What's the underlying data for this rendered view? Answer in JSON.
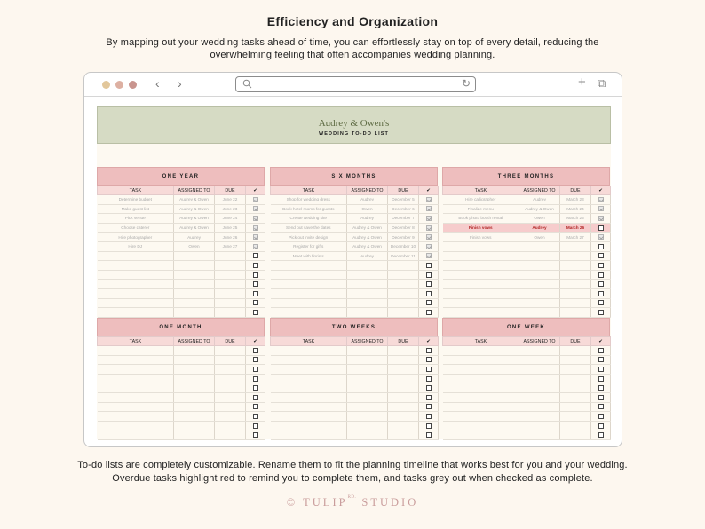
{
  "page": {
    "heading": "Efficiency and Organization",
    "intro": "By mapping out your wedding tasks ahead of time, you can effortlessly stay on top of every detail, reducing the overwhelming feeling that often accompanies wedding planning.",
    "outro_line1": "To-do lists are completely customizable. Rename them to fit the planning timeline that works best for you and your wedding.",
    "outro_line2": "Overdue tasks highlight red to remind you to complete them, and tasks grey out when checked as complete.",
    "brand_left": "© TULIP",
    "brand_sup": "RD.",
    "brand_right": "STUDIO"
  },
  "browser": {
    "dots": [
      "#e2c79b",
      "#ddb0a2",
      "#c9958f"
    ],
    "icons": {
      "back": "chevron-left-icon",
      "forward": "chevron-right-icon",
      "search": "search-icon",
      "reload": "reload-icon",
      "new_tab": "plus-icon",
      "tabs": "tabs-icon"
    },
    "back_glyph": "‹",
    "forward_glyph": "›",
    "reload_glyph": "↻",
    "plus_glyph": "+",
    "tabs_glyph": "⧉"
  },
  "banner": {
    "title": "Audrey & Owen's",
    "subtitle": "WEDDING TO-DO LIST"
  },
  "colors": {
    "header_bg": "#eebebe",
    "banner_bg": "#d6dbc4",
    "overdue": "#f6cccc",
    "overdue_text": "#b22424"
  },
  "columns": {
    "task": "TASK",
    "assigned": "ASSIGNED TO",
    "due": "DUE",
    "check": "✔"
  },
  "panels": [
    {
      "title": "ONE YEAR",
      "rows": [
        {
          "task": "Determine budget",
          "assigned": "Audrey & Owen",
          "due": "June 22",
          "done": true
        },
        {
          "task": "Make guest list",
          "assigned": "Audrey & Owen",
          "due": "June 23",
          "done": true
        },
        {
          "task": "Pick venue",
          "assigned": "Audrey & Owen",
          "due": "June 24",
          "done": true
        },
        {
          "task": "Choose caterer",
          "assigned": "Audrey & Owen",
          "due": "June 25",
          "done": true
        },
        {
          "task": "Hire photographer",
          "assigned": "Audrey",
          "due": "June 26",
          "done": true
        },
        {
          "task": "Hire DJ",
          "assigned": "Owen",
          "due": "June 27",
          "done": true
        }
      ]
    },
    {
      "title": "SIX MONTHS",
      "rows": [
        {
          "task": "Shop for wedding dress",
          "assigned": "Audrey",
          "due": "December 5",
          "done": true
        },
        {
          "task": "Book hotel rooms for guests",
          "assigned": "Owen",
          "due": "December 6",
          "done": true
        },
        {
          "task": "Create wedding site",
          "assigned": "Audrey",
          "due": "December 7",
          "done": true
        },
        {
          "task": "Send out save the dates",
          "assigned": "Audrey & Owen",
          "due": "December 8",
          "done": true
        },
        {
          "task": "Pick out invite design",
          "assigned": "Audrey & Owen",
          "due": "December 9",
          "done": true
        },
        {
          "task": "Register for gifts",
          "assigned": "Audrey & Owen",
          "due": "December 10",
          "done": true
        },
        {
          "task": "Meet with florists",
          "assigned": "Audrey",
          "due": "December 11",
          "done": true
        }
      ]
    },
    {
      "title": "THREE MONTHS",
      "rows": [
        {
          "task": "Hire calligrapher",
          "assigned": "Audrey",
          "due": "March 23",
          "done": true
        },
        {
          "task": "Finalize menu",
          "assigned": "Audrey & Owen",
          "due": "March 24",
          "done": true
        },
        {
          "task": "Book photo booth rental",
          "assigned": "Owen",
          "due": "March 25",
          "done": true
        },
        {
          "task": "Finish vows",
          "assigned": "Audrey",
          "due": "March 26",
          "done": false,
          "overdue": true
        },
        {
          "task": "Finish vows",
          "assigned": "Owen",
          "due": "March 27",
          "done": true
        }
      ]
    },
    {
      "title": "ONE MONTH",
      "rows": []
    },
    {
      "title": "TWO WEEKS",
      "rows": []
    },
    {
      "title": "ONE WEEK",
      "rows": []
    }
  ]
}
